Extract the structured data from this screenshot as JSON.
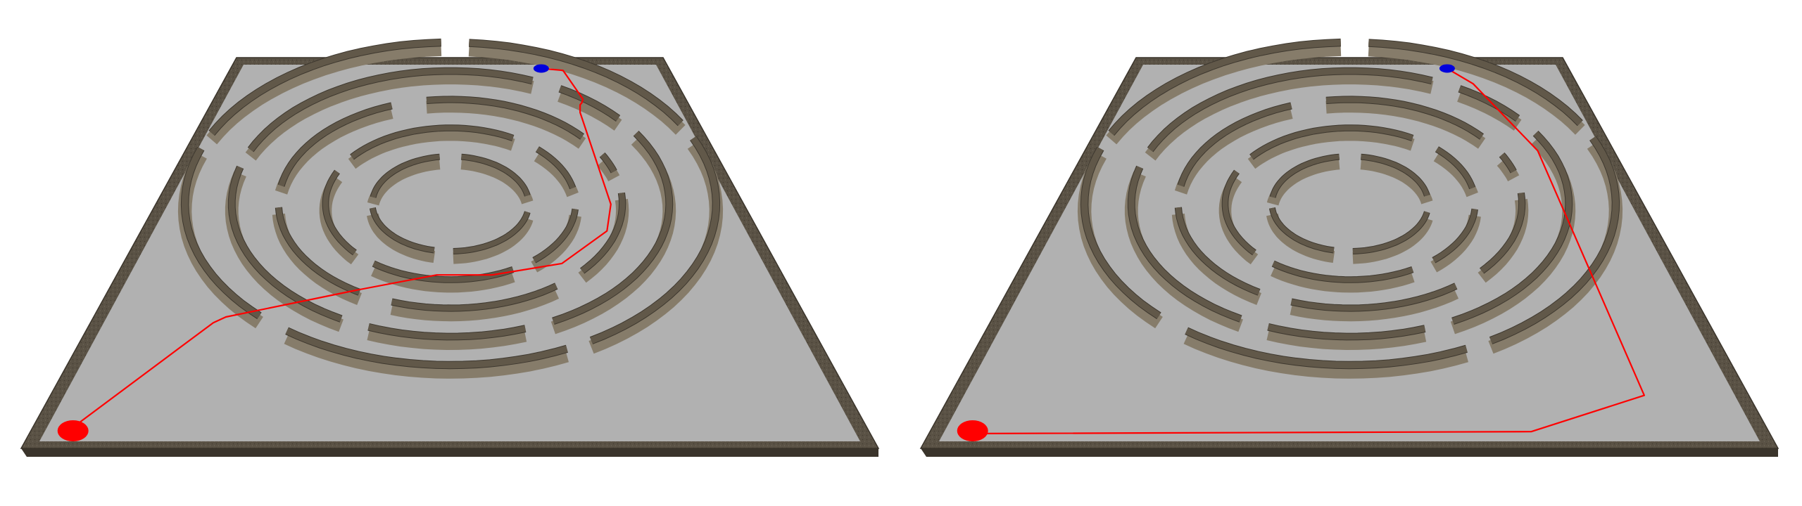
{
  "colors": {
    "background": "#ffffff",
    "board_surface": "#b1b1b1",
    "board_frame": "#5a5245",
    "frame_edge_dark": "#3a342b",
    "wall_top": "#615849",
    "wall_side": "#867c6a",
    "wall_dark": "#3e382f",
    "start_marker": "#ff0000",
    "goal_marker": "#0000dd",
    "path_line": "#ff0000"
  },
  "panels": [
    {
      "id": "left",
      "description_name": "maze-panel-left",
      "path_points": [
        [
          -0.93,
          -0.93
        ],
        [
          -0.67,
          -0.35
        ],
        [
          -0.64,
          -0.32
        ],
        [
          -0.28,
          -0.18
        ],
        [
          -0.04,
          -0.1
        ],
        [
          0.13,
          -0.1
        ],
        [
          0.35,
          -0.04
        ],
        [
          0.52,
          0.13
        ],
        [
          0.56,
          0.27
        ],
        [
          0.55,
          0.75
        ],
        [
          0.56,
          0.79
        ],
        [
          0.57,
          0.8
        ],
        [
          0.58,
          0.82
        ],
        [
          0.53,
          0.97
        ],
        [
          0.43,
          0.98
        ]
      ]
    },
    {
      "id": "right",
      "description_name": "maze-panel-right",
      "path_points": [
        [
          -0.93,
          -0.93
        ],
        [
          0.44,
          -0.92
        ],
        [
          0.75,
          -0.73
        ],
        [
          0.73,
          0.55
        ],
        [
          0.56,
          0.9
        ],
        [
          0.46,
          0.98
        ]
      ]
    }
  ]
}
